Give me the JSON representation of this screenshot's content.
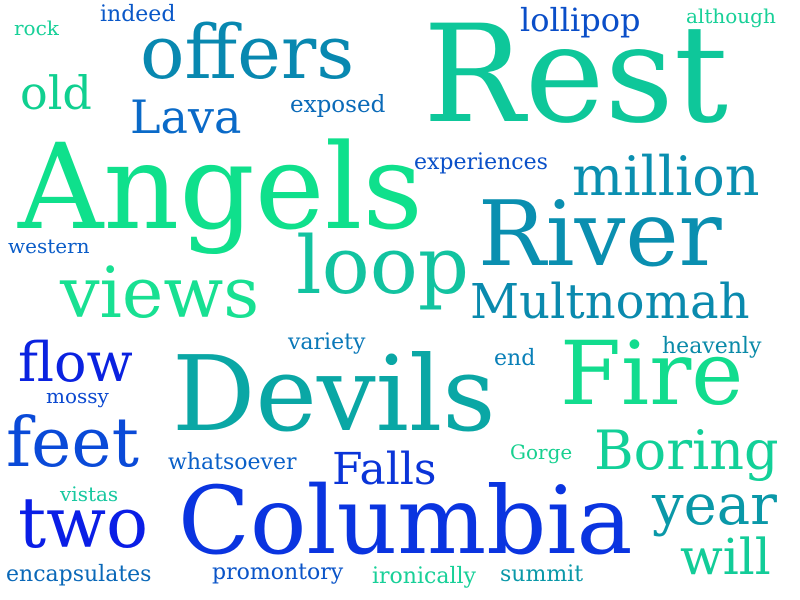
{
  "words": [
    {
      "text": "Rest",
      "color": "#0ec79a"
    },
    {
      "text": "Angels",
      "color": "#0fe08c"
    },
    {
      "text": "Devils",
      "color": "#0aa7a5"
    },
    {
      "text": "Columbia",
      "color": "#0a34e0"
    },
    {
      "text": "River",
      "color": "#0a8fb0"
    },
    {
      "text": "offers",
      "color": "#0888b0"
    },
    {
      "text": "Fire",
      "color": "#12dc8e"
    },
    {
      "text": "loop",
      "color": "#12c3a0"
    },
    {
      "text": "views",
      "color": "#18e092"
    },
    {
      "text": "Multnomah",
      "color": "#0a8aae"
    },
    {
      "text": "million",
      "color": "#0a8fb0"
    },
    {
      "text": "feet",
      "color": "#0a4ad8"
    },
    {
      "text": "two",
      "color": "#0a1ee6"
    },
    {
      "text": "flow",
      "color": "#0a22e0"
    },
    {
      "text": "Boring",
      "color": "#12d098"
    },
    {
      "text": "year",
      "color": "#0a98a8"
    },
    {
      "text": "will",
      "color": "#12cc98"
    },
    {
      "text": "Lava",
      "color": "#0a6ac8"
    },
    {
      "text": "old",
      "color": "#10d090"
    },
    {
      "text": "Falls",
      "color": "#0a34d8"
    },
    {
      "text": "lollipop",
      "color": "#0a4ec8"
    },
    {
      "text": "exposed",
      "color": "#0a6ab8"
    },
    {
      "text": "experiences",
      "color": "#0a50c8"
    },
    {
      "text": "western",
      "color": "#0a5cc8"
    },
    {
      "text": "variety",
      "color": "#0a78b8"
    },
    {
      "text": "end",
      "color": "#0a80b8"
    },
    {
      "text": "heavenly",
      "color": "#0a8aa8"
    },
    {
      "text": "mossy",
      "color": "#0a48d0"
    },
    {
      "text": "whatsoever",
      "color": "#0a60c8"
    },
    {
      "text": "Gorge",
      "color": "#18d090"
    },
    {
      "text": "vistas",
      "color": "#18c8a0"
    },
    {
      "text": "encapsulates",
      "color": "#0a68b8"
    },
    {
      "text": "promontory",
      "color": "#0a54c8"
    },
    {
      "text": "ironically",
      "color": "#18d098"
    },
    {
      "text": "summit",
      "color": "#0a98a8"
    },
    {
      "text": "indeed",
      "color": "#0a58c8"
    },
    {
      "text": "rock",
      "color": "#18d098"
    },
    {
      "text": "although",
      "color": "#18d098"
    }
  ]
}
